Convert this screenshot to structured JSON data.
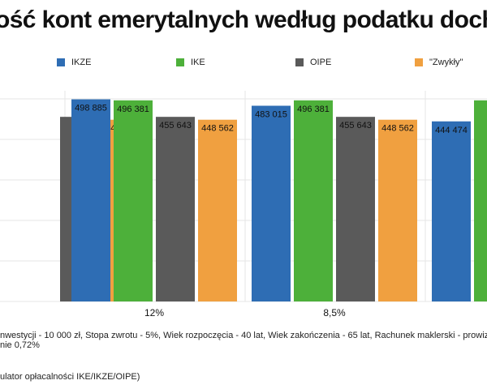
{
  "title": "ość kont emerytalnych według podatku docho",
  "legend": [
    {
      "label": "IKZE",
      "color": "#2e6db4"
    },
    {
      "label": "IKE",
      "color": "#4db03a"
    },
    {
      "label": "OIPE",
      "color": "#5a5a5a"
    },
    {
      "label": "\"Zwykły\"",
      "color": "#f0a040"
    }
  ],
  "chart_data": {
    "type": "bar",
    "title": "ość kont emerytalnych według podatku docho",
    "categories": [
      "",
      "12%",
      "8,5%",
      ""
    ],
    "series": [
      {
        "name": "IKZE",
        "color": "#2e6db4",
        "values": [
          null,
          498885,
          483015,
          444474
        ]
      },
      {
        "name": "IKE",
        "color": "#4db03a",
        "values": [
          null,
          496381,
          496381,
          496381
        ]
      },
      {
        "name": "OIPE",
        "color": "#5a5a5a",
        "values": [
          455643,
          455643,
          455643,
          null
        ]
      },
      {
        "name": "\"Zwykły\"",
        "color": "#f0a040",
        "values": [
          448562,
          448562,
          448562,
          null
        ]
      }
    ],
    "data_labels": [
      [
        null,
        null,
        "643",
        "448 562"
      ],
      [
        "498 885",
        "496 381",
        "455 643",
        "448 562"
      ],
      [
        "483 015",
        "496 381",
        "455 643",
        "448 562"
      ],
      [
        "444 474",
        "49",
        null,
        null
      ]
    ],
    "ylim": [
      0,
      520000
    ],
    "grid": true,
    "legend_position": "top"
  },
  "footnotes": [
    "nwestycji - 10 000 zł, Stopa zwrotu - 5%, Wiek rozpoczęcia - 40 lat, Wiek zakończenia - 65 lat, Rachunek maklerski - prowiz",
    "nie 0,72%",
    "ulator opłacalności IKE/IKZE/OIPE)"
  ]
}
